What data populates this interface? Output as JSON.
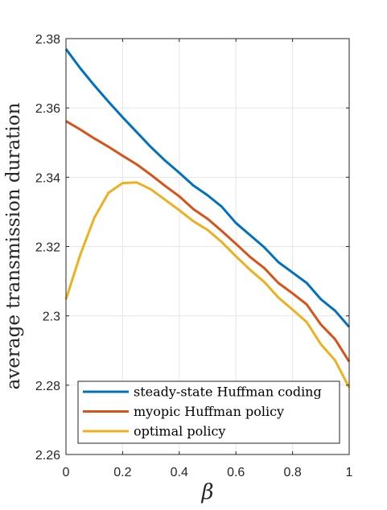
{
  "chart_data": {
    "type": "line",
    "xlabel": "β",
    "ylabel": "average transmission duration",
    "xlim": [
      0,
      1
    ],
    "ylim": [
      2.26,
      2.38
    ],
    "xticks": [
      0,
      0.2,
      0.4,
      0.6,
      0.8,
      1
    ],
    "xtick_labels": [
      "0",
      "0.2",
      "0.4",
      "0.6",
      "0.8",
      "1"
    ],
    "yticks": [
      2.26,
      2.28,
      2.3,
      2.32,
      2.34,
      2.36,
      2.38
    ],
    "ytick_labels": [
      "2.26",
      "2.28",
      "2.3",
      "2.32",
      "2.34",
      "2.36",
      "2.38"
    ],
    "grid": true,
    "legend_position": "bottom",
    "x": [
      0,
      0.05,
      0.1,
      0.15,
      0.2,
      0.25,
      0.3,
      0.35,
      0.4,
      0.45,
      0.5,
      0.55,
      0.6,
      0.65,
      0.7,
      0.75,
      0.8,
      0.85,
      0.9,
      0.95,
      1
    ],
    "series": [
      {
        "name": "steady-state Huffman coding",
        "color": "#0072BD",
        "values": [
          2.377,
          2.3715,
          2.3665,
          2.3618,
          2.3573,
          2.353,
          2.3487,
          2.3448,
          2.3413,
          2.3376,
          2.3348,
          2.3315,
          2.3268,
          2.3233,
          2.3198,
          2.3155,
          2.3125,
          2.3095,
          2.3048,
          2.3015,
          2.2968
        ]
      },
      {
        "name": "myopic Huffman policy",
        "color": "#D95319",
        "values": [
          2.3562,
          2.3538,
          2.3512,
          2.3488,
          2.3462,
          2.3437,
          2.3407,
          2.3375,
          2.3345,
          2.3308,
          2.328,
          2.3245,
          2.3208,
          2.317,
          2.3138,
          2.3095,
          2.3065,
          2.3033,
          2.2975,
          2.2933,
          2.2868
        ]
      },
      {
        "name": "optimal policy",
        "color": "#EDB120",
        "values": [
          2.3048,
          2.3175,
          2.3283,
          2.3355,
          2.3383,
          2.3385,
          2.3365,
          2.3335,
          2.3305,
          2.3273,
          2.3248,
          2.3213,
          2.3172,
          2.3133,
          2.3098,
          2.3053,
          2.3018,
          2.2982,
          2.2918,
          2.2872,
          2.2793
        ]
      }
    ]
  }
}
